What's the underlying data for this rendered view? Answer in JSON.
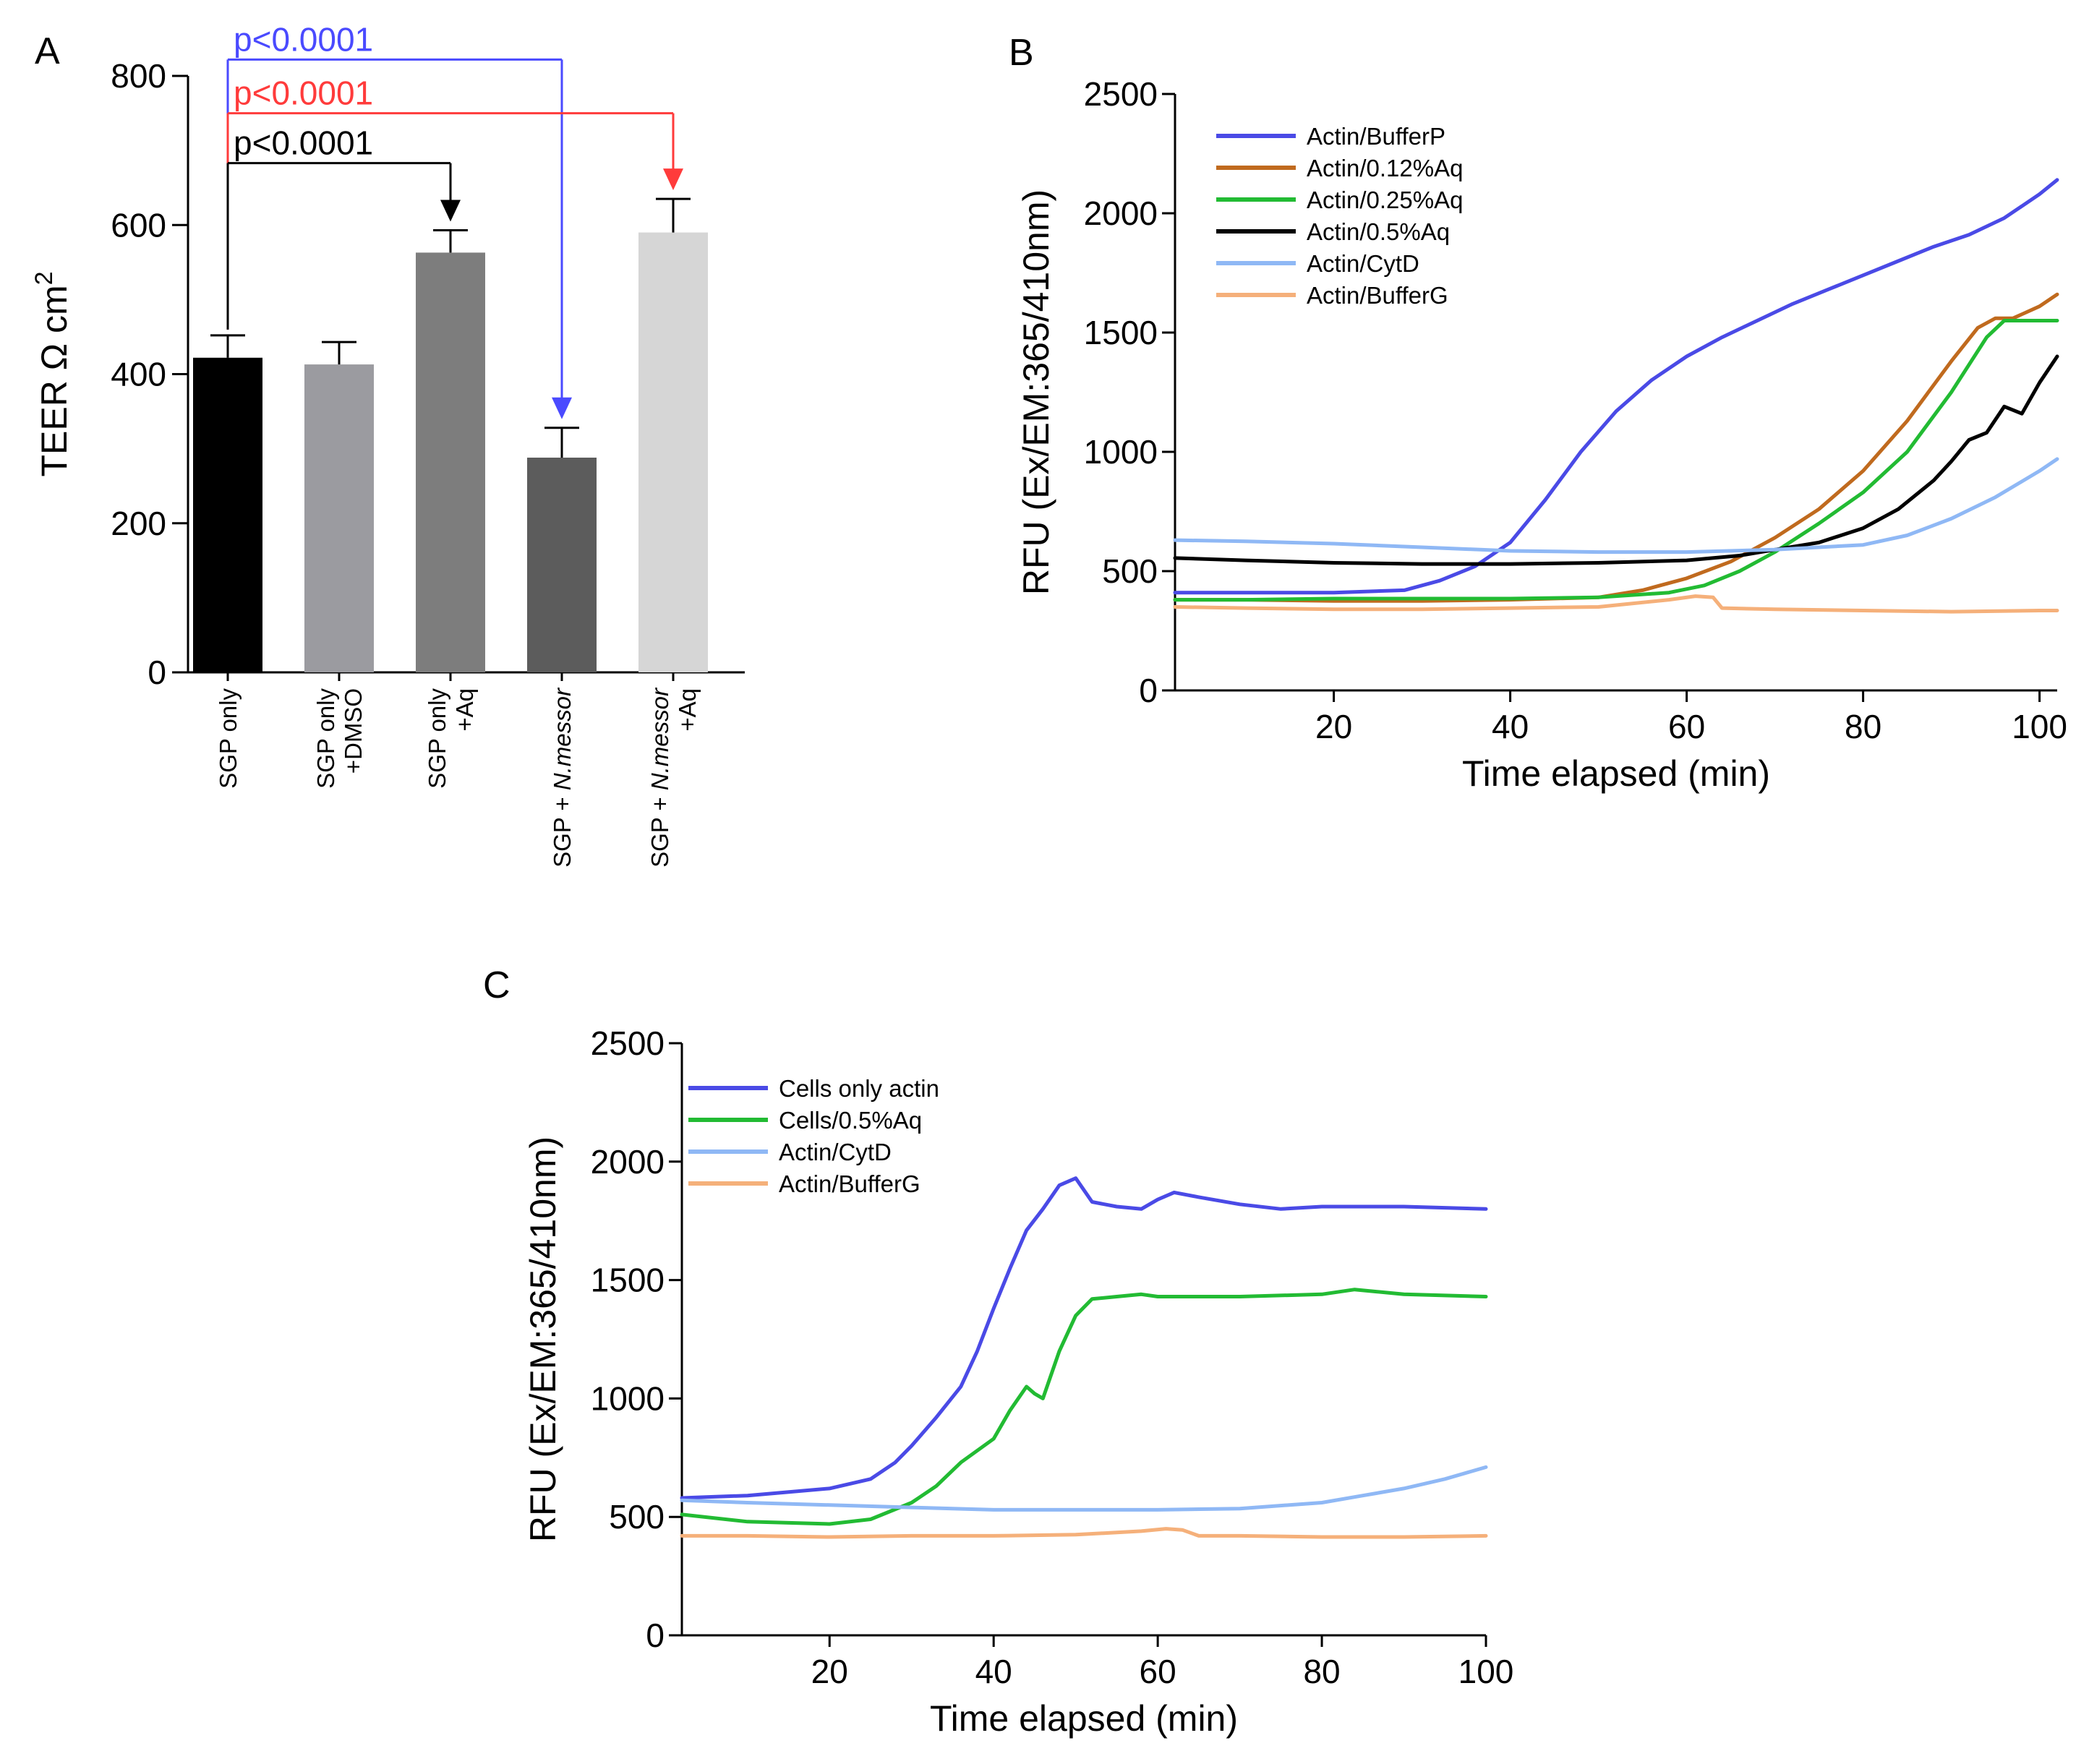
{
  "chart_data": [
    {
      "panel": "A",
      "type": "bar",
      "ylabel": "TEER Ω cm",
      "ylabel_superscript": "2",
      "ylim": [
        0,
        800
      ],
      "yticks": [
        "0",
        "200",
        "400",
        "600",
        "800"
      ],
      "categories": [
        {
          "lines": [
            "SGP only"
          ],
          "value": 422,
          "error": 30,
          "color": "#000000"
        },
        {
          "lines": [
            "SGP only",
            "+DMSO"
          ],
          "value": 413,
          "error": 30,
          "color": "#9b9ba0"
        },
        {
          "lines": [
            "SGP only",
            "+Aq"
          ],
          "value": 563,
          "error": 30,
          "color": "#7d7d7d"
        },
        {
          "lines": [
            "SGP + N.messor"
          ],
          "value": 288,
          "error": 40,
          "color": "#5c5c5c"
        },
        {
          "lines": [
            "SGP + N.messor",
            "+Aq"
          ],
          "value": 590,
          "error": 45,
          "color": "#d6d6d6"
        }
      ],
      "comparisons": [
        {
          "label": "p<0.0001",
          "color": "#4a4aff",
          "from": 0,
          "to": 3,
          "level": 822
        },
        {
          "label": "p<0.0001",
          "color": "#ff3b3b",
          "from": 0,
          "to": 4,
          "level": 750
        },
        {
          "label": "p<0.0001",
          "color": "#000000",
          "from": 0,
          "to": 2,
          "level": 683
        }
      ]
    },
    {
      "panel": "B",
      "type": "line",
      "xlabel": "Time elapsed (min)",
      "ylabel": "RFU (Ex/EM:365/410nm)",
      "xlim": [
        2,
        102
      ],
      "ylim": [
        0,
        2500
      ],
      "xticks": [
        "20",
        "40",
        "60",
        "80",
        "100"
      ],
      "yticks": [
        "0",
        "500",
        "1000",
        "1500",
        "2000",
        "2500"
      ],
      "series": [
        {
          "name": "Actin/BufferP",
          "color": "#4a4ae6",
          "x": [
            2,
            10,
            20,
            28,
            32,
            36,
            40,
            44,
            48,
            52,
            56,
            60,
            64,
            68,
            72,
            76,
            80,
            84,
            88,
            92,
            96,
            100,
            102
          ],
          "y": [
            410,
            410,
            410,
            420,
            460,
            520,
            620,
            800,
            1000,
            1170,
            1300,
            1400,
            1480,
            1550,
            1620,
            1680,
            1740,
            1800,
            1860,
            1910,
            1980,
            2080,
            2140
          ]
        },
        {
          "name": "Actin/0.12%Aq",
          "color": "#c06a1e",
          "x": [
            2,
            10,
            20,
            30,
            40,
            50,
            55,
            60,
            65,
            70,
            75,
            80,
            85,
            90,
            93,
            95,
            97,
            100,
            102
          ],
          "y": [
            380,
            380,
            375,
            375,
            380,
            390,
            420,
            470,
            540,
            640,
            760,
            920,
            1130,
            1380,
            1520,
            1560,
            1560,
            1610,
            1660
          ]
        },
        {
          "name": "Actin/0.25%Aq",
          "color": "#22bb33",
          "x": [
            2,
            10,
            20,
            30,
            40,
            50,
            58,
            62,
            66,
            70,
            75,
            80,
            85,
            90,
            94,
            96,
            98,
            102
          ],
          "y": [
            380,
            380,
            385,
            385,
            385,
            390,
            410,
            440,
            500,
            580,
            700,
            830,
            1000,
            1250,
            1480,
            1550,
            1550,
            1550
          ]
        },
        {
          "name": "Actin/0.5%Aq",
          "color": "#000000",
          "x": [
            2,
            10,
            20,
            30,
            40,
            50,
            60,
            66,
            70,
            75,
            80,
            84,
            88,
            90,
            92,
            94,
            96,
            98,
            100,
            102
          ],
          "y": [
            555,
            545,
            535,
            530,
            530,
            535,
            545,
            565,
            590,
            620,
            680,
            760,
            880,
            960,
            1050,
            1080,
            1190,
            1160,
            1290,
            1400
          ]
        },
        {
          "name": "Actin/CytD",
          "color": "#8fb8f5",
          "x": [
            2,
            10,
            20,
            30,
            40,
            50,
            60,
            70,
            80,
            85,
            90,
            95,
            100,
            102
          ],
          "y": [
            630,
            625,
            615,
            600,
            585,
            580,
            580,
            590,
            610,
            650,
            720,
            810,
            920,
            970
          ]
        },
        {
          "name": "Actin/BufferG",
          "color": "#f5b07a",
          "x": [
            2,
            10,
            20,
            30,
            40,
            50,
            58,
            61,
            63,
            64,
            70,
            80,
            90,
            100,
            102
          ],
          "y": [
            350,
            345,
            340,
            340,
            345,
            350,
            380,
            395,
            390,
            345,
            340,
            335,
            330,
            335,
            335
          ]
        }
      ]
    },
    {
      "panel": "C",
      "type": "line",
      "xlabel": "Time elapsed (min)",
      "ylabel": "RFU (Ex/EM:365/410nm)",
      "xlim": [
        2,
        100
      ],
      "ylim": [
        0,
        2500
      ],
      "xticks": [
        "20",
        "40",
        "60",
        "80",
        "100"
      ],
      "yticks": [
        "0",
        "500",
        "1000",
        "1500",
        "2000",
        "2500"
      ],
      "series": [
        {
          "name": "Cells only actin",
          "color": "#4a4ae6",
          "x": [
            2,
            10,
            20,
            25,
            28,
            30,
            33,
            36,
            38,
            40,
            42,
            44,
            46,
            48,
            50,
            52,
            55,
            58,
            60,
            62,
            65,
            70,
            75,
            80,
            90,
            100
          ],
          "y": [
            580,
            590,
            620,
            660,
            730,
            800,
            920,
            1050,
            1200,
            1380,
            1550,
            1710,
            1800,
            1900,
            1930,
            1830,
            1810,
            1800,
            1840,
            1870,
            1850,
            1820,
            1800,
            1810,
            1810,
            1800
          ]
        },
        {
          "name": "Cells/0.5%Aq",
          "color": "#22bb33",
          "x": [
            2,
            10,
            20,
            25,
            30,
            33,
            36,
            40,
            42,
            44,
            45,
            46,
            48,
            50,
            52,
            55,
            58,
            60,
            70,
            80,
            84,
            90,
            100
          ],
          "y": [
            510,
            480,
            470,
            490,
            560,
            630,
            730,
            830,
            950,
            1050,
            1020,
            1000,
            1200,
            1350,
            1420,
            1430,
            1440,
            1430,
            1430,
            1440,
            1460,
            1440,
            1430
          ]
        },
        {
          "name": "Actin/CytD",
          "color": "#8fb8f5",
          "x": [
            2,
            10,
            20,
            30,
            40,
            50,
            60,
            70,
            80,
            85,
            90,
            95,
            100
          ],
          "y": [
            570,
            560,
            550,
            540,
            530,
            530,
            530,
            535,
            560,
            590,
            620,
            660,
            710
          ]
        },
        {
          "name": "Actin/BufferG",
          "color": "#f5b07a",
          "x": [
            2,
            10,
            20,
            30,
            40,
            50,
            58,
            61,
            63,
            65,
            70,
            80,
            90,
            100
          ],
          "y": [
            420,
            420,
            415,
            420,
            420,
            425,
            440,
            450,
            445,
            420,
            420,
            415,
            415,
            420
          ]
        }
      ]
    }
  ]
}
